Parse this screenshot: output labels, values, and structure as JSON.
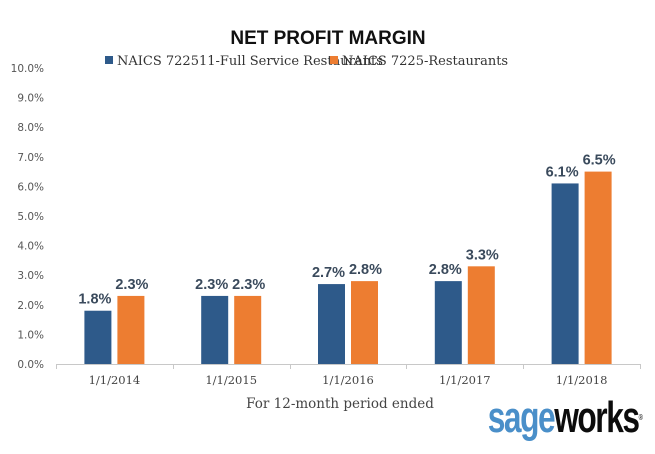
{
  "chart_data": {
    "type": "bar",
    "title": "NET PROFIT MARGIN",
    "xlabel": "For 12-month period ended",
    "ylabel": "",
    "categories": [
      "1/1/2014",
      "1/1/2015",
      "1/1/2016",
      "1/1/2017",
      "1/1/2018"
    ],
    "series": [
      {
        "name": "NAICS 722511-Full Service Restaurants",
        "color": "#2e5a8a",
        "values": [
          1.8,
          2.3,
          2.7,
          2.8,
          6.1
        ],
        "labels": [
          "1.8%",
          "2.3%",
          "2.7%",
          "2.8%",
          "6.1%"
        ]
      },
      {
        "name": "NAICS 7225-Restaurants",
        "color": "#ed7d31",
        "values": [
          2.3,
          2.3,
          2.8,
          3.3,
          6.5
        ],
        "labels": [
          "2.3%",
          "2.3%",
          "2.8%",
          "3.3%",
          "6.5%"
        ]
      }
    ],
    "ylim": [
      0,
      10
    ],
    "yticks": [
      "0.0%",
      "1.0%",
      "2.0%",
      "3.0%",
      "4.0%",
      "5.0%",
      "6.0%",
      "7.0%",
      "8.0%",
      "9.0%",
      "10.0%"
    ],
    "grid": false,
    "legend_position": "top-center",
    "data_labels": true
  },
  "logo": {
    "part1": "sage",
    "part2": "works",
    "mark": "®"
  }
}
